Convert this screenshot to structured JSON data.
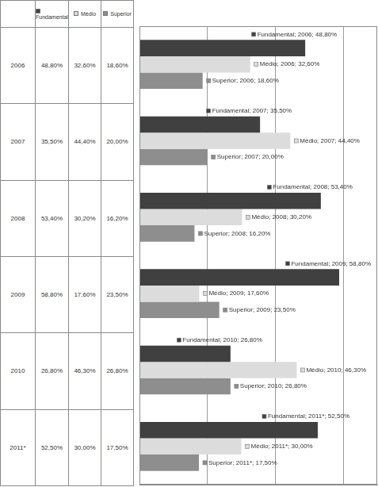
{
  "chart_data": {
    "type": "bar",
    "orientation": "horizontal",
    "categories": [
      "2006",
      "2007",
      "2008",
      "2009",
      "2010",
      "2011*"
    ],
    "series": [
      {
        "name": "Fundamental",
        "color": "#404040",
        "values": [
          48.8,
          35.5,
          53.4,
          58.8,
          26.8,
          52.5
        ],
        "value_labels": [
          "Fundamental; 2006; 48,80%",
          "Fundamental; 2007; 35,50%",
          "Fundamental; 2008; 53,40%",
          "Fundamental; 2009; 58,80%",
          "Fundamental; 2010; 26,80%",
          "Fundamental; 2011*; 52,50%"
        ]
      },
      {
        "name": "Médio",
        "color": "#dcdcdc",
        "values": [
          32.6,
          44.4,
          30.2,
          17.6,
          46.3,
          30.0
        ],
        "value_labels": [
          "Médio; 2006; 32,60%",
          "Médio; 2007; 44,40%",
          "Médio; 2008; 30,20%",
          "Médio; 2009; 17,60%",
          "Médio; 2010; 46,30%",
          "Médio; 2011*; 30,00%"
        ]
      },
      {
        "name": "Superior",
        "color": "#8e8e8e",
        "values": [
          18.6,
          20.0,
          16.2,
          23.5,
          26.8,
          17.5
        ],
        "value_labels": [
          "Superior; 2006; 18,60%",
          "Superior; 2007; 20,00%",
          "Superior; 2008; 16,20%",
          "Superior; 2009; 23,50%",
          "Superior; 2010; 26,80%",
          "Superior; 2011*; 17,50%"
        ]
      }
    ],
    "xlim": [
      0,
      70
    ],
    "xticks": [
      0,
      20,
      40,
      60
    ],
    "grid": true,
    "tick_labels": false,
    "data_labels": true
  },
  "table": {
    "header": [
      "Fundamental",
      "Médio",
      "Superior"
    ],
    "rows": [
      [
        "2006",
        "48,80%",
        "32,60%",
        "18,60%"
      ],
      [
        "2007",
        "35,50%",
        "44,40%",
        "20,00%"
      ],
      [
        "2008",
        "53,40%",
        "30,20%",
        "16,20%"
      ],
      [
        "2009",
        "58,80%",
        "17,60%",
        "23,50%"
      ],
      [
        "2010",
        "26,80%",
        "46,30%",
        "26,80%"
      ],
      [
        "2011*",
        "52,50%",
        "30,00%",
        "17,50%"
      ]
    ]
  }
}
